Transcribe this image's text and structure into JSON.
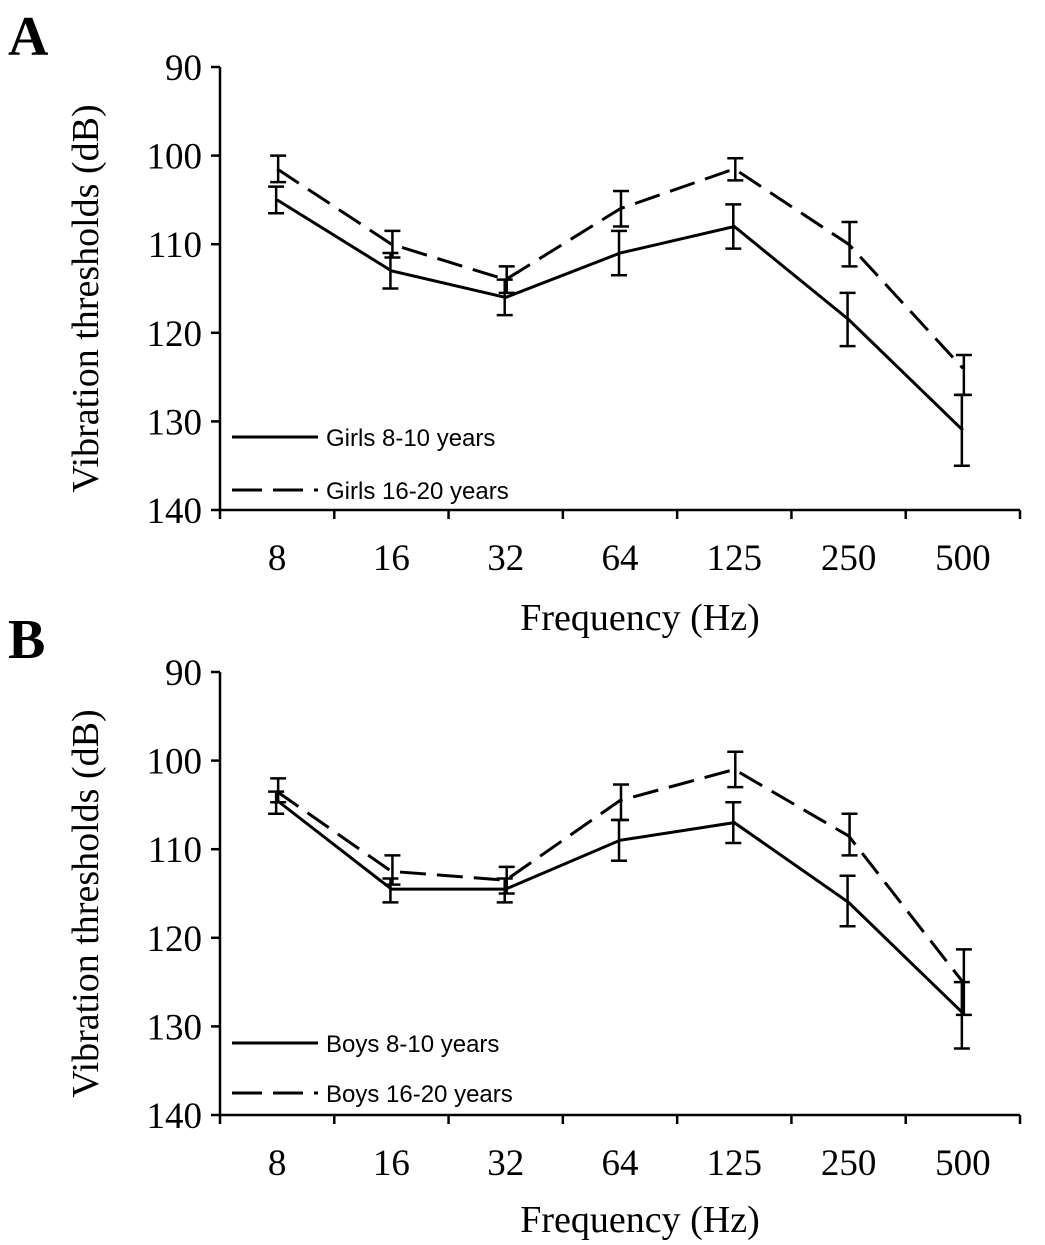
{
  "chart_data": [
    {
      "type": "line",
      "panel_label": "A",
      "categories": [
        "8",
        "16",
        "32",
        "64",
        "125",
        "250",
        "500"
      ],
      "xlabel": "Frequency (Hz)",
      "ylabel": "Vibration thresholds (dB)",
      "ylim": [
        90,
        140
      ],
      "y_inverted": true,
      "yticks": [
        "90",
        "100",
        "110",
        "120",
        "130",
        "140"
      ],
      "legend_position": "bottom-left",
      "series": [
        {
          "name": "Girls 8-10 years",
          "style": "solid",
          "values": [
            105,
            113,
            116,
            111,
            108,
            118.5,
            131
          ],
          "err_low": [
            103.5,
            111,
            114,
            108.5,
            105.5,
            115.5,
            127
          ],
          "err_high": [
            106.5,
            115,
            118,
            113.5,
            110.5,
            121.5,
            135
          ]
        },
        {
          "name": "Girls 16-20 years",
          "style": "dashed",
          "values": [
            101.5,
            110,
            114,
            106,
            101.5,
            110,
            124
          ],
          "err_low": [
            100,
            108.5,
            112.5,
            104,
            100.3,
            107.5,
            122.5
          ],
          "err_high": [
            103,
            111.5,
            115.5,
            108,
            102.8,
            112.5,
            127
          ]
        }
      ]
    },
    {
      "type": "line",
      "panel_label": "B",
      "categories": [
        "8",
        "16",
        "32",
        "64",
        "125",
        "250",
        "500"
      ],
      "xlabel": "Frequency (Hz)",
      "ylabel": "Vibration thresholds (dB)",
      "ylim": [
        90,
        140
      ],
      "y_inverted": true,
      "yticks": [
        "90",
        "100",
        "110",
        "120",
        "130",
        "140"
      ],
      "legend_position": "bottom-left",
      "series": [
        {
          "name": "Boys 8-10 years",
          "style": "solid",
          "values": [
            104.5,
            114.5,
            114.5,
            109,
            107,
            116,
            128.5
          ],
          "err_low": [
            103.5,
            113.3,
            113.3,
            106.7,
            104.7,
            113,
            125
          ],
          "err_high": [
            106,
            116,
            116,
            111.3,
            109.3,
            118.7,
            132.5
          ]
        },
        {
          "name": "Boys 16-20 years",
          "style": "dashed",
          "values": [
            103.5,
            112.5,
            113.5,
            104.5,
            101,
            108.5,
            125
          ],
          "err_low": [
            102,
            110.7,
            112,
            102.7,
            99,
            106,
            121.3
          ],
          "err_high": [
            104.7,
            114,
            115,
            106.7,
            103,
            110.7,
            128.7
          ]
        }
      ]
    }
  ]
}
